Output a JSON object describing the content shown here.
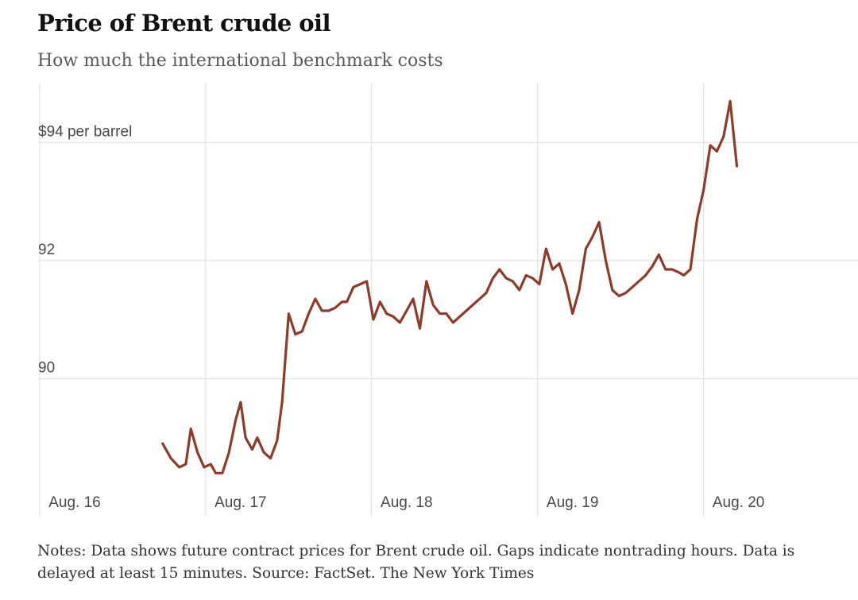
{
  "header": {
    "title": "Price of Brent crude oil",
    "subtitle": "How much the international benchmark costs"
  },
  "footer": {
    "notes": "Notes: Data shows future contract prices for Brent crude oil. Gaps indicate nontrading hours. Data is delayed at least 15 minutes.",
    "source": "Source: FactSet.",
    "credit": "The New York Times"
  },
  "colors": {
    "line": "#8e3b2b",
    "grid": "#dddddd",
    "grid_dotted": "#c4c4c4"
  },
  "chart_data": {
    "type": "line",
    "title": "Price of Brent crude oil",
    "subtitle": "How much the international benchmark costs",
    "x_unit": "days",
    "x_ticks": [
      {
        "x": 0,
        "label": "Aug. 16"
      },
      {
        "x": 1,
        "label": "Aug. 17"
      },
      {
        "x": 2,
        "label": "Aug. 18"
      },
      {
        "x": 3,
        "label": "Aug. 19"
      },
      {
        "x": 4,
        "label": "Aug. 20"
      }
    ],
    "y_ticks": [
      {
        "y": 90,
        "label": "90"
      },
      {
        "y": 92,
        "label": "92"
      },
      {
        "y": 94,
        "label": "$94 per barrel"
      }
    ],
    "xlim": [
      -0.22,
      4.72
    ],
    "ylim": [
      88.0,
      95.0
    ],
    "grid": true,
    "series": [
      {
        "points": [
          [
            0.53,
            88.9
          ],
          [
            0.58,
            88.65
          ],
          [
            0.63,
            88.5
          ],
          [
            0.67,
            88.55
          ],
          [
            0.7,
            89.15
          ],
          [
            0.74,
            88.75
          ],
          [
            0.78,
            88.5
          ],
          [
            0.82,
            88.55
          ],
          [
            0.85,
            88.4
          ],
          [
            0.89,
            88.4
          ],
          [
            0.93,
            88.75
          ],
          [
            0.97,
            89.3
          ],
          [
            1.0,
            89.6
          ],
          [
            1.03,
            89.0
          ],
          [
            1.07,
            88.8
          ],
          [
            1.1,
            89.0
          ],
          [
            1.14,
            88.75
          ],
          [
            1.18,
            88.65
          ],
          [
            1.22,
            88.95
          ],
          [
            1.25,
            89.6
          ],
          [
            1.29,
            91.1
          ],
          [
            1.33,
            90.75
          ],
          [
            1.37,
            90.8
          ],
          [
            1.41,
            91.1
          ],
          [
            1.45,
            91.35
          ],
          [
            1.49,
            91.15
          ],
          [
            1.53,
            91.15
          ],
          [
            1.57,
            91.2
          ],
          [
            1.61,
            91.3
          ],
          [
            1.64,
            91.3
          ],
          [
            1.68,
            91.55
          ],
          [
            1.72,
            91.6
          ],
          [
            1.76,
            91.65
          ],
          [
            1.8,
            91.0
          ],
          [
            1.84,
            91.3
          ],
          [
            1.88,
            91.1
          ],
          [
            1.92,
            91.05
          ],
          [
            1.96,
            90.95
          ],
          [
            2.0,
            91.15
          ],
          [
            2.04,
            91.35
          ],
          [
            2.08,
            90.85
          ],
          [
            2.12,
            91.65
          ],
          [
            2.16,
            91.25
          ],
          [
            2.2,
            91.1
          ],
          [
            2.24,
            91.1
          ],
          [
            2.28,
            90.95
          ],
          [
            2.32,
            91.05
          ],
          [
            2.36,
            91.15
          ],
          [
            2.4,
            91.25
          ],
          [
            2.44,
            91.35
          ],
          [
            2.48,
            91.45
          ],
          [
            2.52,
            91.7
          ],
          [
            2.56,
            91.85
          ],
          [
            2.6,
            91.7
          ],
          [
            2.64,
            91.65
          ],
          [
            2.68,
            91.5
          ],
          [
            2.72,
            91.75
          ],
          [
            2.76,
            91.7
          ],
          [
            2.8,
            91.6
          ],
          [
            2.84,
            92.2
          ],
          [
            2.88,
            91.85
          ],
          [
            2.92,
            91.95
          ],
          [
            2.96,
            91.6
          ],
          [
            3.0,
            91.1
          ],
          [
            3.04,
            91.5
          ],
          [
            3.08,
            92.2
          ],
          [
            3.12,
            92.4
          ],
          [
            3.16,
            92.65
          ],
          [
            3.2,
            92.0
          ],
          [
            3.24,
            91.5
          ],
          [
            3.28,
            91.4
          ],
          [
            3.32,
            91.45
          ],
          [
            3.36,
            91.55
          ],
          [
            3.4,
            91.65
          ],
          [
            3.44,
            91.75
          ],
          [
            3.48,
            91.9
          ],
          [
            3.52,
            92.1
          ],
          [
            3.56,
            91.85
          ],
          [
            3.6,
            91.85
          ],
          [
            3.64,
            91.8
          ],
          [
            3.67,
            91.75
          ],
          [
            3.71,
            91.85
          ],
          [
            3.75,
            92.7
          ],
          [
            3.79,
            93.2
          ],
          [
            3.83,
            93.95
          ],
          [
            3.87,
            93.85
          ],
          [
            3.91,
            94.1
          ],
          [
            3.95,
            94.7
          ],
          [
            3.99,
            93.6
          ]
        ]
      }
    ]
  }
}
